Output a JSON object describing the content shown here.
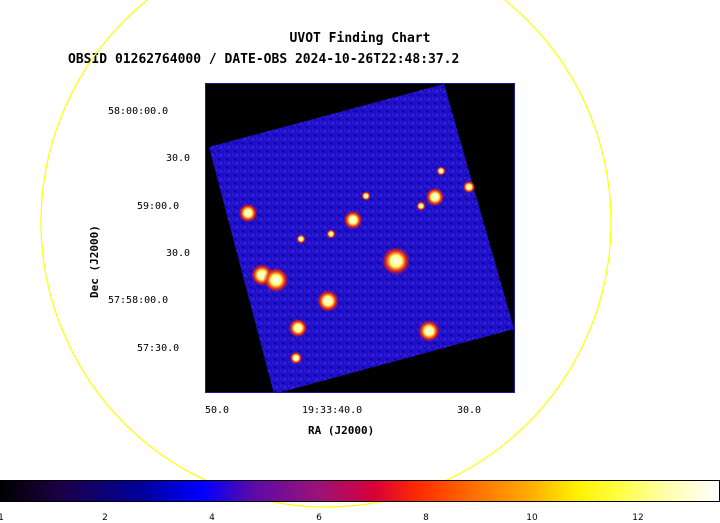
{
  "chart": {
    "title": "UVOT Finding Chart",
    "subtitle": "OBSID 01262764000 / DATE-OBS 2024-10-26T22:48:37.2",
    "xlabel": "RA (J2000)",
    "ylabel": "Dec (J2000)",
    "x_ticks": [
      "50.0",
      "19:33:40.0",
      "30.0"
    ],
    "y_ticks": [
      "58:00:00.0",
      "30.0",
      "59:00.0",
      "30.0",
      "57:58:00.0",
      "57:30.0"
    ]
  },
  "colorbar": {
    "ticks": [
      "1",
      "2",
      "4",
      "6",
      "8",
      "10",
      "12"
    ]
  },
  "colors": {
    "circle": "#ffff00",
    "frame_border": "#1a1aa8",
    "background_noise": "#1a0cc8"
  }
}
